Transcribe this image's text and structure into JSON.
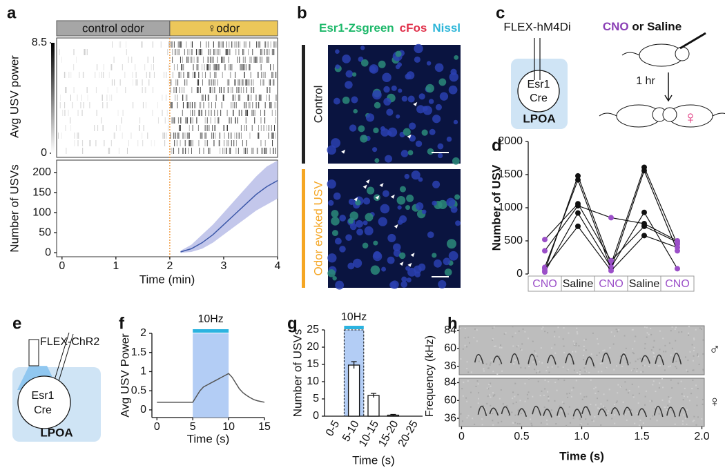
{
  "figure": {
    "b": {
      "panel": "b",
      "stains": [
        {
          "text": "Esr1-Zsgreen",
          "color": "#1db86a"
        },
        {
          "text": "cFos",
          "color": "#e0304a"
        },
        {
          "text": "Nissl",
          "color": "#2bb5d8"
        }
      ],
      "rows": [
        {
          "label": "Control",
          "color": "#222222"
        },
        {
          "label": "Odor evoked USV",
          "color": "#f5a623"
        }
      ]
    },
    "c": {
      "panel": "c",
      "construct": "FLEX-hM4Di",
      "cell_lines": [
        "Esr1",
        "Cre"
      ],
      "region": "LPOA",
      "treatment": [
        {
          "text": "CNO",
          "color": "#8a3fb5"
        },
        {
          "text": " or Saline",
          "color": "#111111"
        }
      ],
      "delay": "1 hr",
      "partner": "♀"
    },
    "e": {
      "panel": "e",
      "construct": "FLEX-ChR2",
      "cell_lines": [
        "Esr1",
        "Cre"
      ],
      "region": "LPOA"
    }
  },
  "chart_data": [
    {
      "panel": "a",
      "type": "line",
      "header": [
        {
          "text": "control odor",
          "color": "#a6a6a6"
        },
        {
          "text": "♀odor",
          "color": "#ecc75a"
        }
      ],
      "raster": {
        "y_label": "Avg USV power",
        "clim": [
          0,
          8.5
        ]
      },
      "x_label": "Time (min)",
      "y_label": "Number of USVs",
      "x": [
        2.2,
        2.4,
        2.6,
        2.8,
        3.0,
        3.2,
        3.4,
        3.6,
        3.8,
        4.0
      ],
      "values": [
        2,
        10,
        25,
        45,
        70,
        95,
        120,
        145,
        165,
        180
      ],
      "lower": [
        0,
        2,
        10,
        25,
        45,
        65,
        85,
        105,
        120,
        135
      ],
      "upper": [
        5,
        20,
        45,
        70,
        100,
        130,
        160,
        190,
        215,
        230
      ],
      "color": "#3b57a8",
      "band_color": "#b9bde8",
      "onset": 2,
      "onset_color": "#f0902a",
      "xlim": [
        -0.1,
        4
      ],
      "ylim": [
        -10,
        231
      ],
      "xticks": [
        0,
        1,
        2,
        3,
        4
      ],
      "yticks": [
        0,
        50,
        100,
        150,
        200
      ]
    },
    {
      "panel": "d",
      "type": "line",
      "y_label": "Number of USV",
      "categories": [
        "CNO",
        "Saline",
        "CNO",
        "Saline",
        "CNO"
      ],
      "category_colors": [
        "#9b4fc8",
        "#111111",
        "#9b4fc8",
        "#111111",
        "#9b4fc8"
      ],
      "color": "#111111",
      "series": [
        {
          "values": [
            50,
            1480,
            150,
            1610,
            450
          ]
        },
        {
          "values": [
            100,
            1420,
            80,
            1560,
            350
          ]
        },
        {
          "values": [
            520,
            1060,
            200,
            720,
            480
          ]
        },
        {
          "values": [
            350,
            1030,
            850,
            760,
            500
          ]
        },
        {
          "values": [
            30,
            920,
            100,
            930,
            80
          ]
        },
        {
          "values": [
            80,
            720,
            50,
            580,
            400
          ]
        }
      ],
      "ylim": [
        0,
        2000
      ],
      "yticks": [
        0,
        500,
        1000,
        1500,
        2000
      ]
    },
    {
      "panel": "f",
      "type": "line",
      "x_label": "Time (s)",
      "y_label": "Avg USV Power",
      "x": [
        0,
        1,
        2,
        3,
        4,
        5,
        5.5,
        6,
        6.5,
        7,
        7.5,
        8,
        8.5,
        9,
        9.5,
        10,
        10.5,
        11,
        11.5,
        12,
        12.5,
        13,
        13.5,
        14,
        14.5,
        15
      ],
      "values": [
        0.2,
        0.2,
        0.2,
        0.2,
        0.2,
        0.2,
        0.35,
        0.5,
        0.6,
        0.65,
        0.7,
        0.75,
        0.8,
        0.85,
        0.9,
        0.95,
        0.85,
        0.7,
        0.55,
        0.45,
        0.38,
        0.32,
        0.27,
        0.24,
        0.22,
        0.2
      ],
      "color": "#555555",
      "stimulus": {
        "label": "10Hz",
        "range": [
          5,
          10
        ],
        "color": "#2bb3e0",
        "fill": "#b3cdf5"
      },
      "xlim": [
        -0.7,
        15
      ],
      "ylim": [
        -0.2,
        2
      ],
      "xticks": [
        0,
        5,
        10,
        15
      ],
      "yticks": [
        0,
        0.5,
        1,
        1.5,
        2
      ]
    },
    {
      "panel": "g",
      "type": "bar",
      "x_label": "Time (s)",
      "y_label": "Number of USVs",
      "categories": [
        "0-5",
        "5-10",
        "10-15",
        "15-20",
        "20-25"
      ],
      "values": [
        0,
        14.8,
        6,
        0.3,
        0
      ],
      "errors": [
        0,
        1,
        0.6,
        0.2,
        0
      ],
      "color": "#ffffff",
      "stimulus": {
        "label": "10Hz",
        "category": 1,
        "color": "#2bb3e0",
        "fill": "#b3cdf5"
      },
      "ylim": [
        0,
        25
      ],
      "yticks": [
        0,
        5,
        10,
        15,
        20,
        25
      ]
    },
    {
      "panel": "h",
      "type": "spectrogram",
      "x_label": "Time (s)",
      "y_label": "Frequency (kHz)",
      "xlim": [
        -0.02,
        2.02
      ],
      "xticks": [
        0,
        0.5,
        {
          "value": 1,
          "label": "1.0"
        },
        1.5,
        {
          "value": 2,
          "label": "2.0"
        }
      ],
      "panels": [
        {
          "symbol": "♂",
          "ylim": [
            25,
            90
          ],
          "yticks": [
            36,
            60,
            84
          ]
        },
        {
          "symbol": "♀",
          "ylim": [
            25,
            90
          ],
          "yticks": [
            36,
            60,
            84
          ]
        }
      ]
    }
  ]
}
